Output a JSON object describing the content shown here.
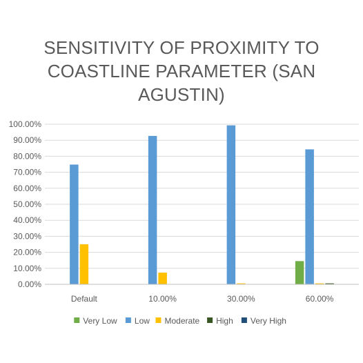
{
  "chart_data": {
    "type": "bar",
    "title": "SENSITIVITY OF PROXIMITY TO COASTLINE PARAMETER (SAN AGUSTIN)",
    "xlabel": "",
    "ylabel": "",
    "categories": [
      "Default",
      "10.00%",
      "30.00%",
      "60.00%"
    ],
    "ylim": [
      0,
      100
    ],
    "y_ticks": [
      "0.00%",
      "10.00%",
      "20.00%",
      "30.00%",
      "40.00%",
      "50.00%",
      "60.00%",
      "70.00%",
      "80.00%",
      "90.00%",
      "100.00%"
    ],
    "grid": true,
    "legend_position": "bottom",
    "series": [
      {
        "name": "Very Low",
        "color": "#70AD47",
        "values": [
          0,
          0,
          0,
          14.5
        ]
      },
      {
        "name": "Low",
        "color": "#5B9BD5",
        "values": [
          74.8,
          92.7,
          99.3,
          84.3
        ]
      },
      {
        "name": "Moderate",
        "color": "#FFC000",
        "values": [
          25.0,
          7.3,
          0.6,
          0.6
        ]
      },
      {
        "name": "High",
        "color": "#375623",
        "values": [
          0,
          0,
          0,
          0.6
        ]
      },
      {
        "name": "Very High",
        "color": "#1F4E79",
        "values": [
          0,
          0,
          0,
          0
        ]
      }
    ]
  }
}
